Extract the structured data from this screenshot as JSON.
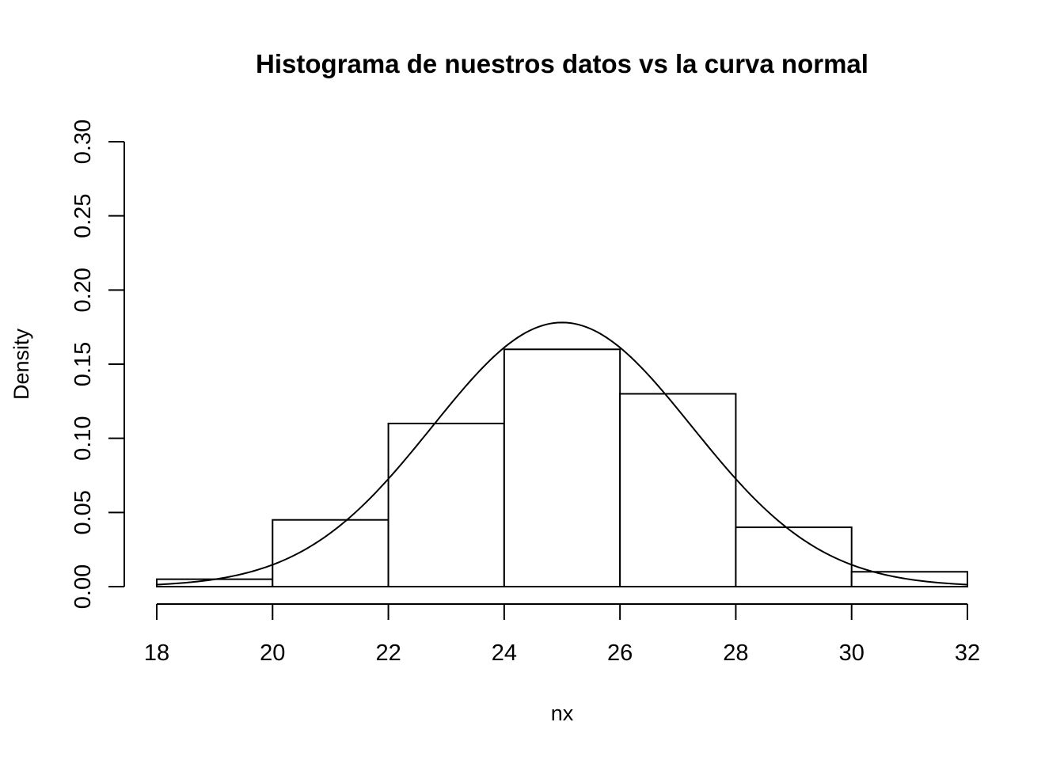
{
  "chart_data": {
    "type": "bar",
    "title": "Histograma de nuestros datos vs la curva normal",
    "xlabel": "nx",
    "ylabel": "Density",
    "breaks": [
      18,
      20,
      22,
      24,
      26,
      28,
      30,
      32
    ],
    "values": [
      0.005,
      0.045,
      0.11,
      0.16,
      0.13,
      0.04,
      0.01
    ],
    "xlim": [
      18,
      32
    ],
    "ylim": [
      0,
      0.3
    ],
    "x_ticks": [
      "18",
      "20",
      "22",
      "24",
      "26",
      "28",
      "30",
      "32"
    ],
    "y_ticks": [
      "0.00",
      "0.05",
      "0.10",
      "0.15",
      "0.20",
      "0.25",
      "0.30"
    ],
    "normal_curve": {
      "mean": 25,
      "sd": 2.24
    },
    "grid": false,
    "legend": "none"
  }
}
